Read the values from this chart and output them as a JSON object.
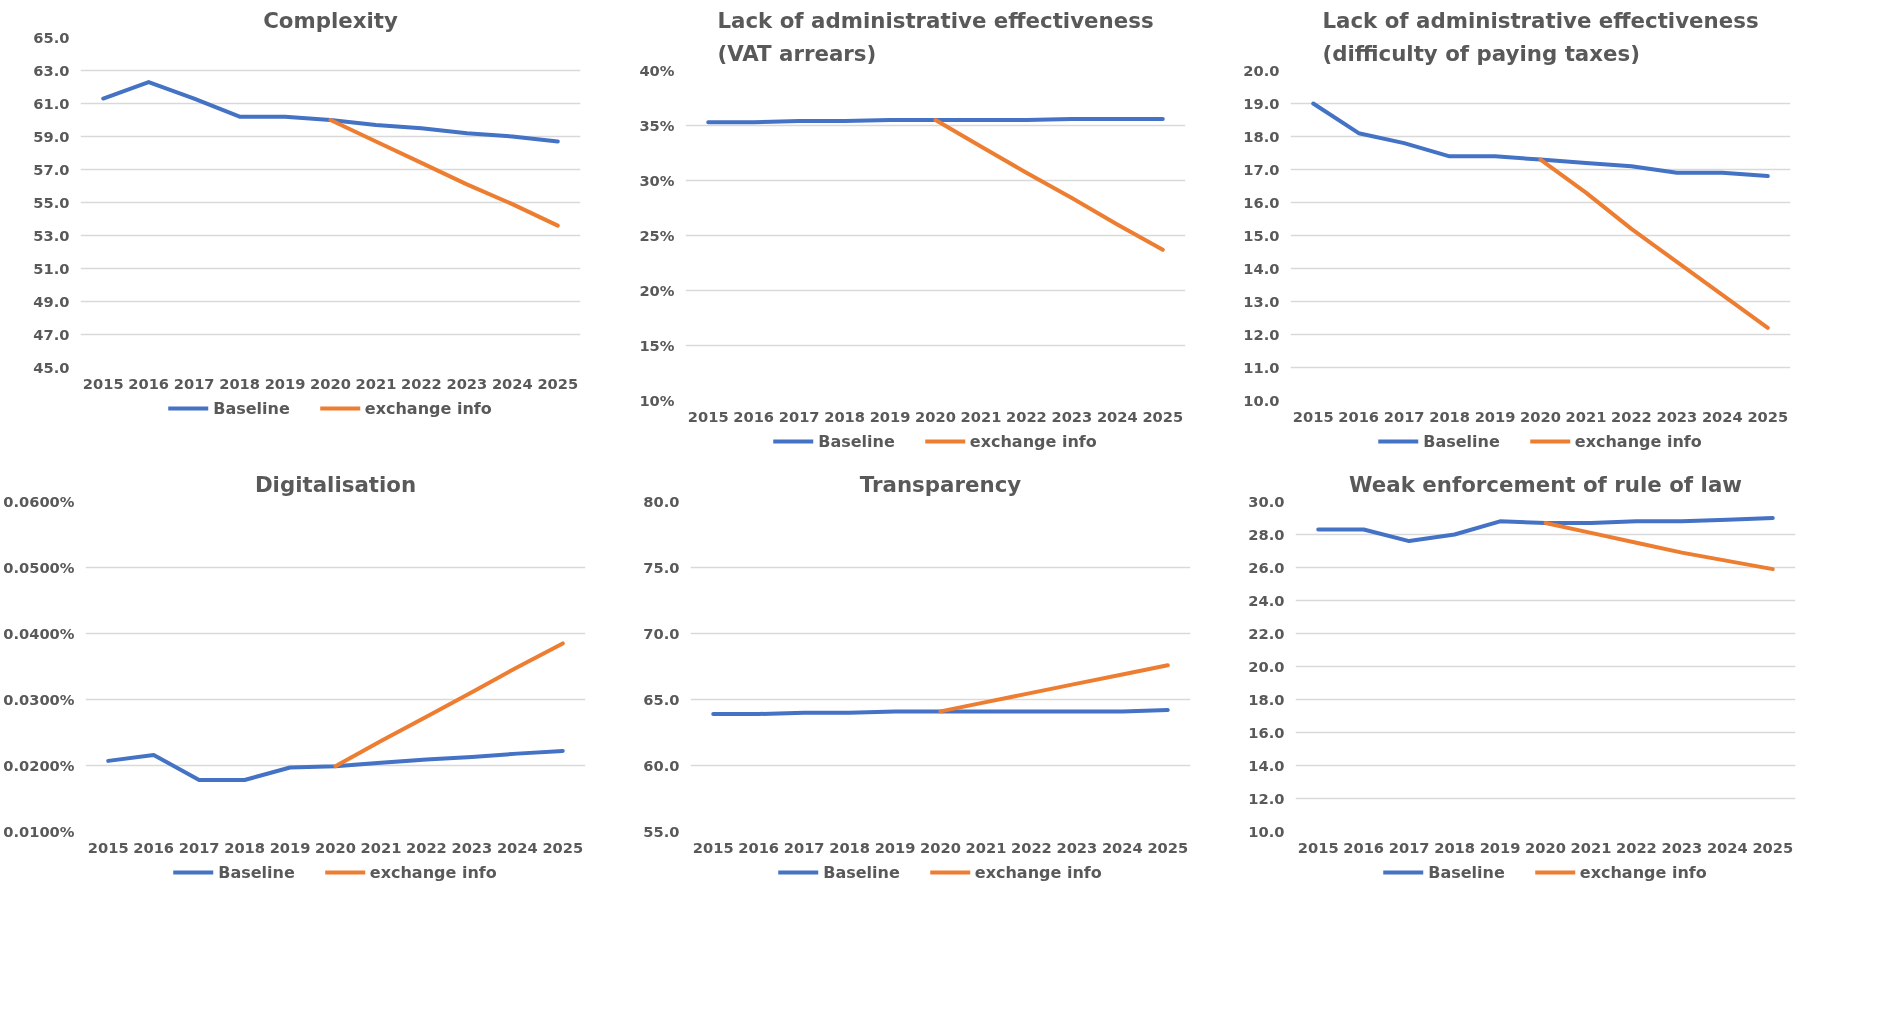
{
  "chart_data": [
    {
      "type": "line",
      "title": "Complexity",
      "categories": [
        "2015",
        "2016",
        "2017",
        "2018",
        "2019",
        "2020",
        "2021",
        "2022",
        "2023",
        "2024",
        "2025"
      ],
      "ylim": [
        45,
        65
      ],
      "yticks": [
        {
          "value": 45,
          "label": "45.0"
        },
        {
          "value": 47,
          "label": "47.0"
        },
        {
          "value": 49,
          "label": "49.0"
        },
        {
          "value": 51,
          "label": "51.0"
        },
        {
          "value": 53,
          "label": "53.0"
        },
        {
          "value": 55,
          "label": "55.0"
        },
        {
          "value": 57,
          "label": "57.0"
        },
        {
          "value": 59,
          "label": "59.0"
        },
        {
          "value": 61,
          "label": "61.0"
        },
        {
          "value": 63,
          "label": "63.0"
        },
        {
          "value": 65,
          "label": "65.0"
        }
      ],
      "grid": "y",
      "legend": "bottom",
      "series": [
        {
          "name": "Baseline",
          "color": "#4472c4",
          "values": [
            61.3,
            62.3,
            61.3,
            60.2,
            60.2,
            60.0,
            59.7,
            59.5,
            59.2,
            59.0,
            58.7
          ]
        },
        {
          "name": "exchange info",
          "color": "#ed7d31",
          "values": [
            null,
            null,
            null,
            null,
            null,
            60.0,
            58.7,
            57.4,
            56.1,
            54.9,
            53.6
          ]
        }
      ]
    },
    {
      "type": "line",
      "title": "Lack of administrative effectiveness (VAT arrears)",
      "categories": [
        "2015",
        "2016",
        "2017",
        "2018",
        "2019",
        "2020",
        "2021",
        "2022",
        "2023",
        "2024",
        "2025"
      ],
      "ylim": [
        10,
        40
      ],
      "yticks": [
        {
          "value": 10,
          "label": "10%"
        },
        {
          "value": 15,
          "label": "15%"
        },
        {
          "value": 20,
          "label": "20%"
        },
        {
          "value": 25,
          "label": "25%"
        },
        {
          "value": 30,
          "label": "30%"
        },
        {
          "value": 35,
          "label": "35%"
        },
        {
          "value": 40,
          "label": "40%"
        }
      ],
      "grid": "y",
      "legend": "bottom",
      "series": [
        {
          "name": "Baseline",
          "color": "#4472c4",
          "values": [
            35.3,
            35.3,
            35.4,
            35.4,
            35.5,
            35.5,
            35.5,
            35.5,
            35.6,
            35.6,
            35.6
          ]
        },
        {
          "name": "exchange info",
          "color": "#ed7d31",
          "values": [
            null,
            null,
            null,
            null,
            null,
            35.5,
            33.1,
            30.7,
            28.4,
            26.0,
            23.7
          ]
        }
      ]
    },
    {
      "type": "line",
      "title": "Lack of administrative effectiveness (difficulty of paying taxes)",
      "categories": [
        "2015",
        "2016",
        "2017",
        "2018",
        "2019",
        "2020",
        "2021",
        "2022",
        "2023",
        "2024",
        "2025"
      ],
      "ylim": [
        10,
        20
      ],
      "yticks": [
        {
          "value": 10,
          "label": "10.0"
        },
        {
          "value": 11,
          "label": "11.0"
        },
        {
          "value": 12,
          "label": "12.0"
        },
        {
          "value": 13,
          "label": "13.0"
        },
        {
          "value": 14,
          "label": "14.0"
        },
        {
          "value": 15,
          "label": "15.0"
        },
        {
          "value": 16,
          "label": "16.0"
        },
        {
          "value": 17,
          "label": "17.0"
        },
        {
          "value": 18,
          "label": "18.0"
        },
        {
          "value": 19,
          "label": "19.0"
        },
        {
          "value": 20,
          "label": "20.0"
        }
      ],
      "grid": "y",
      "legend": "bottom",
      "series": [
        {
          "name": "Baseline",
          "color": "#4472c4",
          "values": [
            19.0,
            18.1,
            17.8,
            17.4,
            17.4,
            17.3,
            17.2,
            17.1,
            16.9,
            16.9,
            16.8
          ]
        },
        {
          "name": "exchange info",
          "color": "#ed7d31",
          "values": [
            null,
            null,
            null,
            null,
            null,
            17.3,
            16.3,
            15.2,
            14.2,
            13.2,
            12.2
          ]
        }
      ]
    },
    {
      "type": "line",
      "title": "Digitalisation",
      "categories": [
        "2015",
        "2016",
        "2017",
        "2018",
        "2019",
        "2020",
        "2021",
        "2022",
        "2023",
        "2024",
        "2025"
      ],
      "ylim": [
        0.01,
        0.06
      ],
      "yticks": [
        {
          "value": 0.01,
          "label": "0.0100%"
        },
        {
          "value": 0.02,
          "label": "0.0200%"
        },
        {
          "value": 0.03,
          "label": "0.0300%"
        },
        {
          "value": 0.04,
          "label": "0.0400%"
        },
        {
          "value": 0.05,
          "label": "0.0500%"
        },
        {
          "value": 0.06,
          "label": "0.0600%"
        }
      ],
      "grid": "y",
      "legend": "bottom",
      "series": [
        {
          "name": "Baseline",
          "color": "#4472c4",
          "values": [
            0.0207,
            0.0216,
            0.0178,
            0.0178,
            0.0197,
            0.0199,
            0.0204,
            0.0209,
            0.0213,
            0.0218,
            0.0222
          ]
        },
        {
          "name": "exchange info",
          "color": "#ed7d31",
          "values": [
            null,
            null,
            null,
            null,
            null,
            0.0199,
            0.0237,
            0.0274,
            0.0311,
            0.0349,
            0.0385
          ]
        }
      ]
    },
    {
      "type": "line",
      "title": "Transparency",
      "categories": [
        "2015",
        "2016",
        "2017",
        "2018",
        "2019",
        "2020",
        "2021",
        "2022",
        "2023",
        "2024",
        "2025"
      ],
      "ylim": [
        55,
        80
      ],
      "yticks": [
        {
          "value": 55,
          "label": "55.0"
        },
        {
          "value": 60,
          "label": "60.0"
        },
        {
          "value": 65,
          "label": "65.0"
        },
        {
          "value": 70,
          "label": "70.0"
        },
        {
          "value": 75,
          "label": "75.0"
        },
        {
          "value": 80,
          "label": "80.0"
        }
      ],
      "grid": "y",
      "legend": "bottom",
      "series": [
        {
          "name": "Baseline",
          "color": "#4472c4",
          "values": [
            63.9,
            63.9,
            64.0,
            64.0,
            64.1,
            64.1,
            64.1,
            64.1,
            64.1,
            64.1,
            64.2
          ]
        },
        {
          "name": "exchange info",
          "color": "#ed7d31",
          "values": [
            null,
            null,
            null,
            null,
            null,
            64.1,
            64.8,
            65.5,
            66.2,
            66.9,
            67.6
          ]
        }
      ]
    },
    {
      "type": "line",
      "title": "Weak enforcement of rule of law",
      "categories": [
        "2015",
        "2016",
        "2017",
        "2018",
        "2019",
        "2020",
        "2021",
        "2022",
        "2023",
        "2024",
        "2025"
      ],
      "ylim": [
        10,
        30
      ],
      "yticks": [
        {
          "value": 10,
          "label": "10.0"
        },
        {
          "value": 12,
          "label": "12.0"
        },
        {
          "value": 14,
          "label": "14.0"
        },
        {
          "value": 16,
          "label": "16.0"
        },
        {
          "value": 18,
          "label": "18.0"
        },
        {
          "value": 20,
          "label": "20.0"
        },
        {
          "value": 22,
          "label": "22.0"
        },
        {
          "value": 24,
          "label": "24.0"
        },
        {
          "value": 26,
          "label": "26.0"
        },
        {
          "value": 28,
          "label": "28.0"
        },
        {
          "value": 30,
          "label": "30.0"
        }
      ],
      "grid": "y",
      "legend": "bottom",
      "series": [
        {
          "name": "Baseline",
          "color": "#4472c4",
          "values": [
            28.3,
            28.3,
            27.6,
            28.0,
            28.8,
            28.7,
            28.7,
            28.8,
            28.8,
            28.9,
            29.0
          ]
        },
        {
          "name": "exchange info",
          "color": "#ed7d31",
          "values": [
            null,
            null,
            null,
            null,
            null,
            28.7,
            28.1,
            27.5,
            26.9,
            26.4,
            25.9
          ]
        }
      ]
    }
  ]
}
